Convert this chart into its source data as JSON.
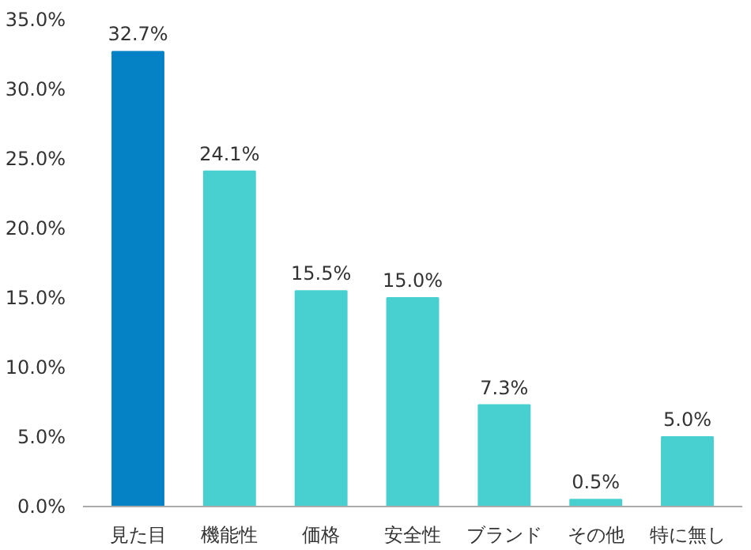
{
  "chart_data": {
    "type": "bar",
    "categories": [
      "見た目",
      "機能性",
      "価格",
      "安全性",
      "ブランド",
      "その他",
      "特に無し"
    ],
    "values": [
      32.7,
      24.1,
      15.5,
      15.0,
      7.3,
      0.5,
      5.0
    ],
    "colors": [
      "#0581c5",
      "#48cfd0",
      "#48cfd0",
      "#48cfd0",
      "#48cfd0",
      "#48cfd0",
      "#48cfd0"
    ],
    "value_labels": [
      "32.7%",
      "24.1%",
      "15.5%",
      "15.0%",
      "7.3%",
      "0.5%",
      "5.0%"
    ],
    "ylim": [
      0,
      35
    ],
    "yticks": [
      {
        "value": 0,
        "label": "0.0%"
      },
      {
        "value": 5,
        "label": "5.0%"
      },
      {
        "value": 10,
        "label": "10.0%"
      },
      {
        "value": 15,
        "label": "15.0%"
      },
      {
        "value": 20,
        "label": "20.0%"
      },
      {
        "value": 25,
        "label": "25.0%"
      },
      {
        "value": 30,
        "label": "30.0%"
      },
      {
        "value": 35,
        "label": "35.0%"
      }
    ],
    "grid": false
  }
}
